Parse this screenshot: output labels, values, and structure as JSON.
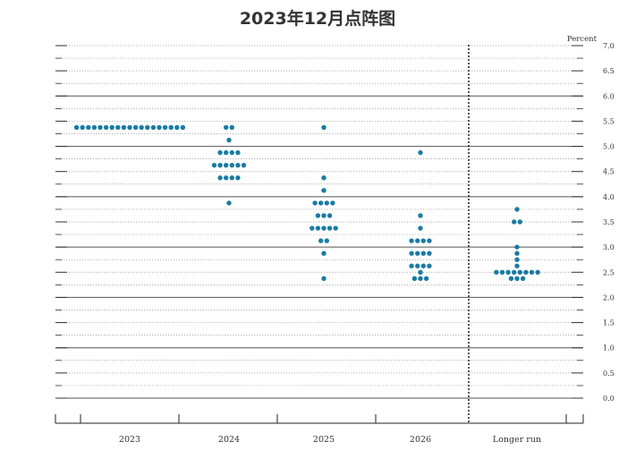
{
  "chart_data": {
    "type": "scatter",
    "title": "2023年12月点阵图",
    "unit_label": "Percent",
    "categories": [
      "2023",
      "2024",
      "2025",
      "2026",
      "Longer run"
    ],
    "ylim": [
      0,
      7
    ],
    "yticks": [
      "0.0",
      "0.5",
      "1.0",
      "1.5",
      "2.0",
      "2.5",
      "3.0",
      "3.5",
      "4.0",
      "4.5",
      "5.0",
      "5.5",
      "6.0",
      "6.5",
      "7.0"
    ],
    "grid": true,
    "dot_color": "#1a7ba3",
    "series": [
      {
        "category": "2023",
        "points": [
          {
            "y": 5.375,
            "count": 19
          }
        ]
      },
      {
        "category": "2024",
        "points": [
          {
            "y": 5.375,
            "count": 2
          },
          {
            "y": 5.125,
            "count": 1
          },
          {
            "y": 4.875,
            "count": 4
          },
          {
            "y": 4.625,
            "count": 6
          },
          {
            "y": 4.375,
            "count": 4
          },
          {
            "y": 3.875,
            "count": 1
          }
        ]
      },
      {
        "category": "2025",
        "points": [
          {
            "y": 5.375,
            "count": 1
          },
          {
            "y": 4.375,
            "count": 1
          },
          {
            "y": 4.125,
            "count": 1
          },
          {
            "y": 3.875,
            "count": 4
          },
          {
            "y": 3.625,
            "count": 3
          },
          {
            "y": 3.375,
            "count": 5
          },
          {
            "y": 3.125,
            "count": 2
          },
          {
            "y": 2.875,
            "count": 1
          },
          {
            "y": 2.375,
            "count": 1
          }
        ]
      },
      {
        "category": "2026",
        "points": [
          {
            "y": 4.875,
            "count": 1
          },
          {
            "y": 3.625,
            "count": 1
          },
          {
            "y": 3.375,
            "count": 1
          },
          {
            "y": 3.125,
            "count": 4
          },
          {
            "y": 2.875,
            "count": 4
          },
          {
            "y": 2.625,
            "count": 4
          },
          {
            "y": 2.5,
            "count": 1
          },
          {
            "y": 2.375,
            "count": 3
          }
        ]
      },
      {
        "category": "Longer run",
        "points": [
          {
            "y": 3.75,
            "count": 1
          },
          {
            "y": 3.5,
            "count": 2
          },
          {
            "y": 3.0,
            "count": 1
          },
          {
            "y": 2.875,
            "count": 1
          },
          {
            "y": 2.75,
            "count": 1
          },
          {
            "y": 2.625,
            "count": 1
          },
          {
            "y": 2.5,
            "count": 8
          },
          {
            "y": 2.375,
            "count": 3
          }
        ]
      }
    ]
  }
}
